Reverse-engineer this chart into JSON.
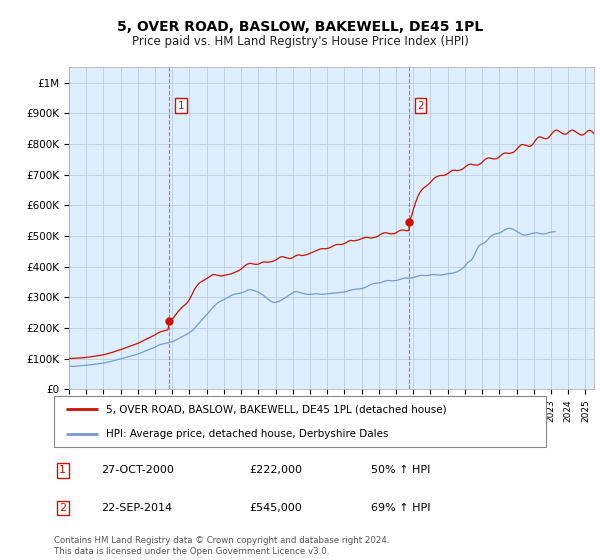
{
  "title": "5, OVER ROAD, BASLOW, BAKEWELL, DE45 1PL",
  "subtitle": "Price paid vs. HM Land Registry's House Price Index (HPI)",
  "title_fontsize": 10,
  "subtitle_fontsize": 8.5,
  "ylabel_ticks": [
    "£0",
    "£100K",
    "£200K",
    "£300K",
    "£400K",
    "£500K",
    "£600K",
    "£700K",
    "£800K",
    "£900K",
    "£1M"
  ],
  "ytick_values": [
    0,
    100000,
    200000,
    300000,
    400000,
    500000,
    600000,
    700000,
    800000,
    900000,
    1000000
  ],
  "ylim": [
    0,
    1050000
  ],
  "xlim_start": 1995.0,
  "xlim_end": 2025.5,
  "chart_bg_color": "#ddeeff",
  "background_color": "#ffffff",
  "grid_color": "#bbccdd",
  "hpi_line_color": "#7799cc",
  "property_line_color": "#cc1100",
  "vline_color": "#dd4444",
  "sale1_date_x": 2000.82,
  "sale1_price": 222000,
  "sale2_date_x": 2014.73,
  "sale2_price": 545000,
  "legend_label1": "5, OVER ROAD, BASLOW, BAKEWELL, DE45 1PL (detached house)",
  "legend_label2": "HPI: Average price, detached house, Derbyshire Dales",
  "annotation1_date": "27-OCT-2000",
  "annotation1_price": "£222,000",
  "annotation1_hpi": "50% ↑ HPI",
  "annotation2_date": "22-SEP-2014",
  "annotation2_price": "£545,000",
  "annotation2_hpi": "69% ↑ HPI",
  "footer_text": "Contains HM Land Registry data © Crown copyright and database right 2024.\nThis data is licensed under the Open Government Licence v3.0.",
  "hpi_monthly": [
    75000,
    74800,
    74500,
    74200,
    74600,
    75100,
    75400,
    75800,
    76000,
    76300,
    76700,
    77100,
    78000,
    78500,
    79000,
    79600,
    80200,
    80800,
    81400,
    82000,
    82600,
    83200,
    83800,
    84400,
    85200,
    86100,
    87000,
    88100,
    89200,
    90400,
    91600,
    92800,
    94000,
    95200,
    96400,
    97600,
    98800,
    100100,
    101400,
    102700,
    104000,
    105300,
    106600,
    107900,
    109200,
    110500,
    111800,
    113100,
    114500,
    116400,
    118300,
    120200,
    122100,
    124000,
    125900,
    127800,
    129700,
    131600,
    133500,
    135400,
    137300,
    139700,
    142100,
    144500,
    146000,
    147000,
    148100,
    149200,
    150300,
    151400,
    152500,
    153600,
    155000,
    157000,
    159000,
    161500,
    164000,
    166500,
    169000,
    171500,
    174000,
    176500,
    179000,
    181500,
    184500,
    188000,
    191500,
    196000,
    201000,
    206500,
    212000,
    217500,
    223000,
    228000,
    233000,
    238000,
    243000,
    248500,
    254000,
    260000,
    265500,
    270500,
    275000,
    279000,
    282500,
    285500,
    288000,
    290000,
    292000,
    294500,
    297000,
    300000,
    303000,
    305500,
    307500,
    309000,
    310500,
    311500,
    312000,
    313000,
    314000,
    315500,
    317000,
    319000,
    321500,
    323500,
    324500,
    324000,
    323000,
    321500,
    320000,
    318000,
    316000,
    313500,
    310500,
    307500,
    304000,
    300000,
    296000,
    292000,
    289000,
    286000,
    284000,
    283000,
    283500,
    284500,
    286000,
    288000,
    290500,
    293000,
    296000,
    299000,
    302000,
    305500,
    308500,
    311500,
    314500,
    317000,
    318500,
    318000,
    317000,
    315500,
    314000,
    312500,
    311000,
    310000,
    309500,
    309000,
    309000,
    309500,
    310000,
    310500,
    311000,
    311000,
    310500,
    310000,
    309500,
    309500,
    310000,
    310500,
    311000,
    311500,
    312000,
    312500,
    313000,
    313500,
    314000,
    314500,
    315000,
    315500,
    316000,
    316500,
    317000,
    318000,
    319500,
    321000,
    322500,
    324000,
    325000,
    325500,
    326000,
    326500,
    327000,
    327500,
    328000,
    329500,
    331000,
    333000,
    335500,
    338000,
    340500,
    342500,
    344000,
    345000,
    345500,
    346000,
    346500,
    347500,
    349000,
    350500,
    352000,
    353500,
    354500,
    354500,
    354000,
    353500,
    353500,
    354000,
    354500,
    355500,
    357000,
    358500,
    360000,
    361500,
    362500,
    362500,
    362000,
    362000,
    362500,
    363000,
    364000,
    365500,
    367000,
    368500,
    370000,
    371000,
    371500,
    371000,
    370500,
    370500,
    371000,
    371500,
    372500,
    373500,
    374000,
    373500,
    373000,
    372500,
    372000,
    372000,
    372500,
    373500,
    374500,
    375500,
    376500,
    377000,
    377500,
    378000,
    379000,
    380500,
    382000,
    384000,
    386500,
    389500,
    393000,
    397000,
    401500,
    407000,
    413000,
    416500,
    419000,
    424000,
    432000,
    442000,
    452000,
    462000,
    468500,
    472000,
    474000,
    476000,
    479000,
    483000,
    488000,
    493500,
    498500,
    502000,
    504500,
    506000,
    507000,
    508000,
    509500,
    511500,
    514000,
    517000,
    520000,
    522500,
    524000,
    524500,
    524000,
    522500,
    520500,
    518000,
    515000,
    512000,
    509000,
    506500,
    504500,
    503000,
    502500,
    503000,
    504000,
    505500,
    507000,
    508000,
    509000,
    509500,
    509500,
    509000,
    508000,
    507000,
    506500,
    506500,
    507000,
    508000,
    509500,
    511000,
    512000,
    513000,
    513500,
    513500
  ],
  "prop_monthly_base": [
    100000,
    100200,
    100400,
    100500,
    100800,
    101100,
    101400,
    101700,
    102000,
    102400,
    102800,
    103200,
    103700,
    104300,
    104900,
    105500,
    106200,
    106900,
    107600,
    108300,
    109000,
    109800,
    110600,
    111400,
    112300,
    113400,
    114500,
    115800,
    117100,
    118500,
    119900,
    121400,
    122900,
    124400,
    125900,
    127400,
    129000,
    130700,
    132400,
    134100,
    135800,
    137500,
    139200,
    140900,
    142600,
    144300,
    146000,
    147700,
    149500,
    151800,
    154100,
    156400,
    158700,
    161000,
    163300,
    165600,
    167900,
    170200,
    172500,
    174800,
    177200,
    180000,
    182800,
    185600,
    187500,
    188800,
    190100,
    191400,
    192700,
    194000,
    195300,
    196600,
    198100,
    200400,
    202700,
    205500,
    208300,
    211100,
    214000,
    217000,
    220000,
    223100,
    226200,
    229300
  ],
  "prop_monthly_after1": [
    222000,
    225000,
    229000,
    234000,
    240000,
    247000,
    253000,
    258000,
    263000,
    268000,
    272000,
    276000,
    280000,
    286000,
    293000,
    302000,
    311000,
    321000,
    329000,
    336000,
    342000,
    347000,
    350000,
    353000,
    355000,
    358000,
    361000,
    364000,
    367000,
    370000,
    373000,
    374000,
    373000,
    372000,
    371000,
    370000,
    369000,
    370000,
    371000,
    372000,
    373000,
    374000,
    375000,
    376000,
    378000,
    380000,
    382000,
    384000,
    386000,
    389000,
    392000,
    396000,
    400000,
    404000,
    407000,
    409000,
    410000,
    410000,
    409000,
    408000,
    407000,
    407000,
    408000,
    410000,
    412000,
    414000,
    415000,
    415000,
    414000,
    414000,
    415000,
    416000,
    417000,
    419000,
    421000,
    424000,
    427000,
    430000,
    432000,
    432000,
    431000,
    429000,
    428000,
    427000,
    426000,
    427000,
    429000,
    432000,
    435000,
    437000,
    438000,
    437000,
    436000,
    436000,
    437000,
    438000,
    439000,
    441000,
    443000,
    445000,
    447000,
    449000,
    451000,
    453000,
    455000,
    457000,
    458000,
    458000,
    458000,
    458000,
    459000,
    460000,
    462000,
    464000,
    467000,
    469000,
    471000,
    472000,
    472000,
    472000,
    472000,
    473000,
    475000,
    477000,
    480000,
    483000,
    485000,
    485000,
    484000,
    484000,
    485000,
    486000,
    487000,
    489000,
    491000,
    493000,
    494000,
    495000,
    495000,
    494000,
    493000,
    493000,
    494000,
    495000,
    496000,
    498000,
    501000,
    504000,
    507000,
    509000,
    510000,
    510000,
    509000,
    508000,
    507000,
    507000,
    507000,
    508000,
    510000,
    513000,
    516000,
    518000,
    519000,
    519000,
    518000,
    517000,
    517000,
    518000
  ],
  "prop_monthly_after2": [
    545000,
    555000,
    568000,
    585000,
    600000,
    614000,
    626000,
    636000,
    644000,
    650000,
    655000,
    659000,
    662000,
    666000,
    670000,
    675000,
    680000,
    685000,
    689000,
    692000,
    694000,
    696000,
    697000,
    697000,
    697000,
    698000,
    700000,
    703000,
    706000,
    710000,
    713000,
    714000,
    714000,
    713000,
    713000,
    714000,
    715000,
    717000,
    720000,
    724000,
    728000,
    731000,
    733000,
    734000,
    733000,
    732000,
    731000,
    731000,
    731000,
    733000,
    736000,
    740000,
    745000,
    749000,
    752000,
    754000,
    754000,
    753000,
    752000,
    751000,
    751000,
    752000,
    754000,
    758000,
    762000,
    766000,
    769000,
    770000,
    770000,
    769000,
    769000,
    770000,
    771000,
    773000,
    777000,
    782000,
    787000,
    792000,
    796000,
    798000,
    797000,
    796000,
    794000,
    793000,
    792000,
    793000,
    797000,
    803000,
    810000,
    816000,
    821000,
    823000,
    822000,
    820000,
    818000,
    817000,
    817000,
    819000,
    824000,
    830000,
    836000,
    841000,
    844000,
    845000,
    843000,
    840000,
    837000,
    834000,
    832000,
    831000,
    833000,
    837000,
    841000,
    844000,
    845000,
    843000,
    840000,
    837000,
    834000,
    831000,
    829000,
    829000,
    831000,
    835000,
    839000,
    843000,
    844000,
    842000,
    838000,
    834000,
    830000,
    827000,
    824000,
    823000,
    824000,
    826000,
    829000,
    830000,
    829000,
    826000,
    821000,
    816000,
    812000,
    808000,
    805000,
    804000,
    804000,
    805000,
    806000,
    806000,
    805000,
    803000,
    800000,
    797000
  ]
}
